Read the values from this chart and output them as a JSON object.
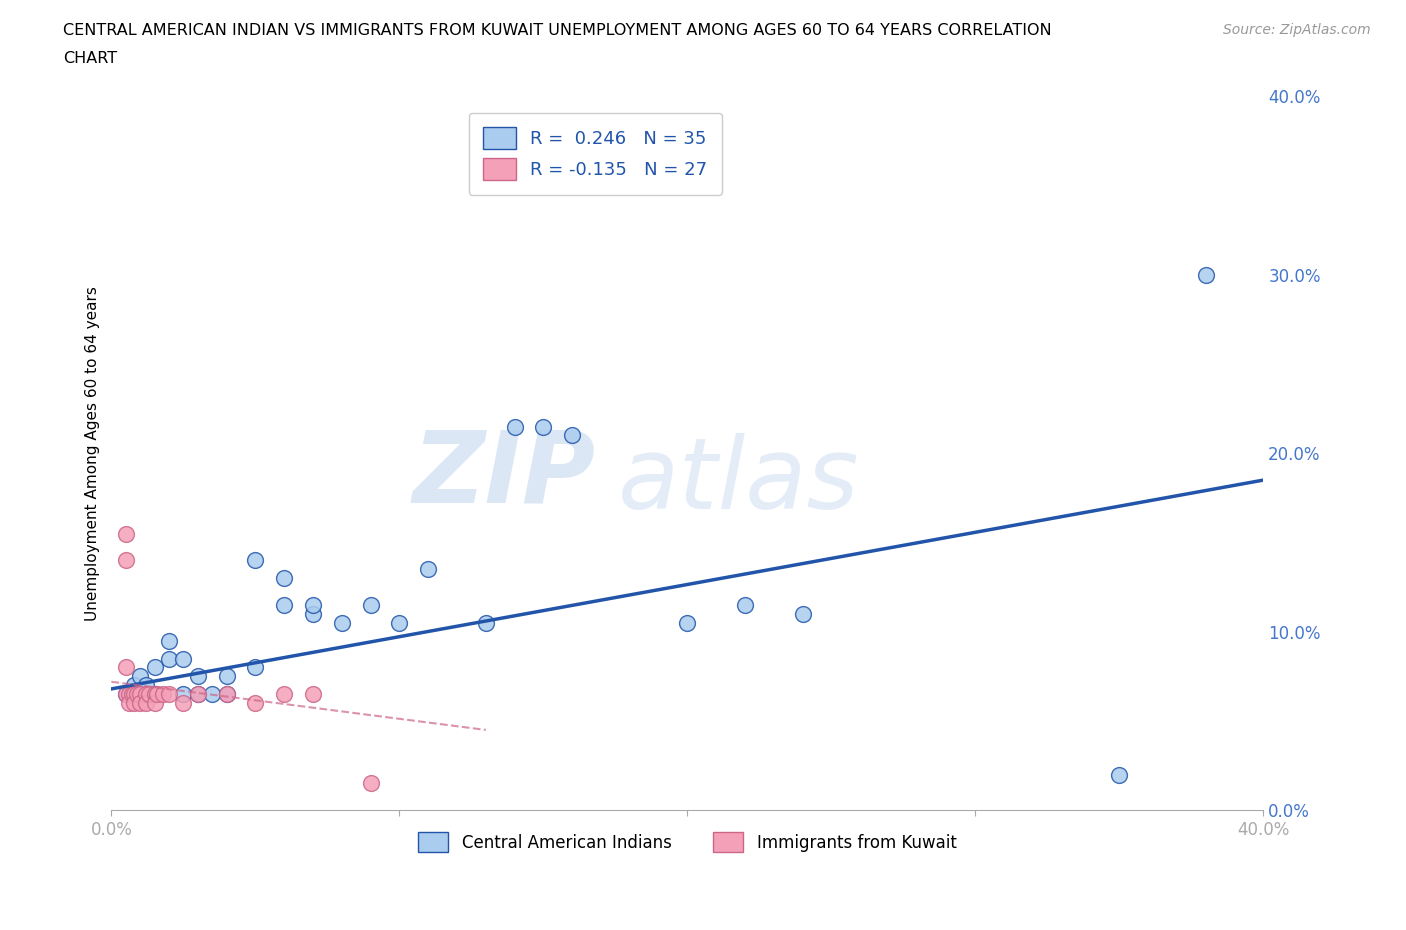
{
  "title_line1": "CENTRAL AMERICAN INDIAN VS IMMIGRANTS FROM KUWAIT UNEMPLOYMENT AMONG AGES 60 TO 64 YEARS CORRELATION",
  "title_line2": "CHART",
  "source": "Source: ZipAtlas.com",
  "ylabel": "Unemployment Among Ages 60 to 64 years",
  "xlim": [
    0.0,
    0.4
  ],
  "ylim": [
    0.0,
    0.4
  ],
  "ytick_labels": [
    "0.0%",
    "10.0%",
    "20.0%",
    "30.0%",
    "40.0%"
  ],
  "ytick_values": [
    0.0,
    0.1,
    0.2,
    0.3,
    0.4
  ],
  "xtick_values": [
    0.0,
    0.1,
    0.2,
    0.3,
    0.4
  ],
  "blue_color": "#aaccee",
  "blue_line_color": "#2255aa",
  "pink_color": "#f4a0b8",
  "pink_line_color": "#cc6688",
  "legend_blue_label": "R =  0.246   N = 35",
  "legend_pink_label": "R = -0.135   N = 27",
  "bottom_legend_blue": "Central American Indians",
  "bottom_legend_pink": "Immigrants from Kuwait",
  "watermark_zip": "ZIP",
  "watermark_atlas": "atlas",
  "blue_scatter_x": [
    0.005,
    0.008,
    0.01,
    0.01,
    0.012,
    0.015,
    0.015,
    0.02,
    0.02,
    0.025,
    0.025,
    0.03,
    0.03,
    0.035,
    0.04,
    0.04,
    0.05,
    0.05,
    0.06,
    0.06,
    0.07,
    0.07,
    0.08,
    0.09,
    0.1,
    0.11,
    0.13,
    0.14,
    0.15,
    0.16,
    0.2,
    0.22,
    0.24,
    0.35,
    0.38
  ],
  "blue_scatter_y": [
    0.065,
    0.07,
    0.075,
    0.065,
    0.07,
    0.065,
    0.08,
    0.085,
    0.095,
    0.065,
    0.085,
    0.065,
    0.075,
    0.065,
    0.065,
    0.075,
    0.08,
    0.14,
    0.115,
    0.13,
    0.11,
    0.115,
    0.105,
    0.115,
    0.105,
    0.135,
    0.105,
    0.215,
    0.215,
    0.21,
    0.105,
    0.115,
    0.11,
    0.02,
    0.3
  ],
  "pink_scatter_x": [
    0.005,
    0.005,
    0.005,
    0.005,
    0.006,
    0.006,
    0.007,
    0.008,
    0.008,
    0.009,
    0.01,
    0.01,
    0.012,
    0.012,
    0.013,
    0.015,
    0.015,
    0.016,
    0.018,
    0.02,
    0.025,
    0.03,
    0.04,
    0.05,
    0.06,
    0.07,
    0.09
  ],
  "pink_scatter_y": [
    0.155,
    0.14,
    0.08,
    0.065,
    0.065,
    0.06,
    0.065,
    0.065,
    0.06,
    0.065,
    0.065,
    0.06,
    0.065,
    0.06,
    0.065,
    0.065,
    0.06,
    0.065,
    0.065,
    0.065,
    0.06,
    0.065,
    0.065,
    0.06,
    0.065,
    0.065,
    0.015
  ],
  "blue_trendline_x": [
    0.0,
    0.4
  ],
  "blue_trendline_y": [
    0.068,
    0.185
  ],
  "pink_trendline_x": [
    0.0,
    0.13
  ],
  "pink_trendline_y": [
    0.072,
    0.045
  ]
}
